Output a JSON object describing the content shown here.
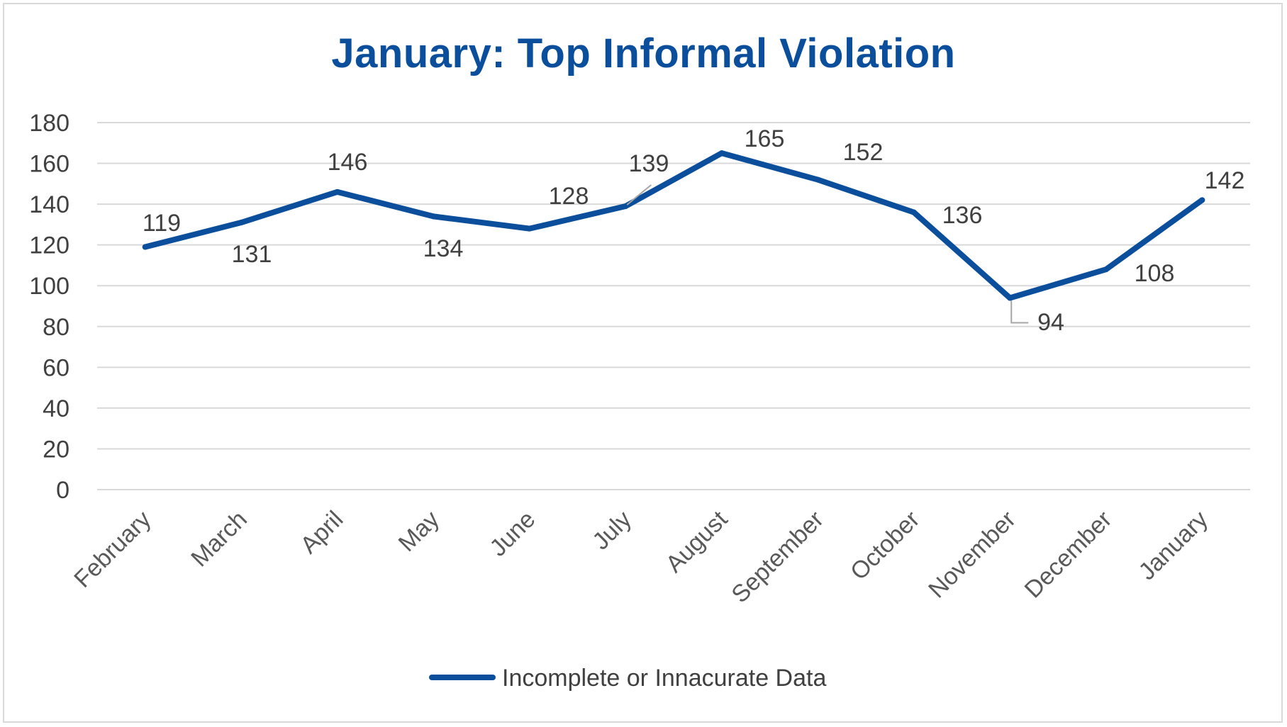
{
  "chart_data": {
    "type": "line",
    "title": "January: Top Informal Violation",
    "categories": [
      "February",
      "March",
      "April",
      "May",
      "June",
      "July",
      "August",
      "September",
      "October",
      "November",
      "December",
      "January"
    ],
    "series": [
      {
        "name": "Incomplete or Innacurate Data",
        "values": [
          119,
          131,
          146,
          134,
          128,
          139,
          165,
          152,
          136,
          94,
          108,
          142
        ],
        "color": "#0b4f9c"
      }
    ],
    "yticks": [
      "0",
      "20",
      "40",
      "60",
      "80",
      "100",
      "120",
      "140",
      "160",
      "180"
    ],
    "ylim": [
      0,
      180
    ],
    "grid": true,
    "legend_position": "bottom"
  }
}
